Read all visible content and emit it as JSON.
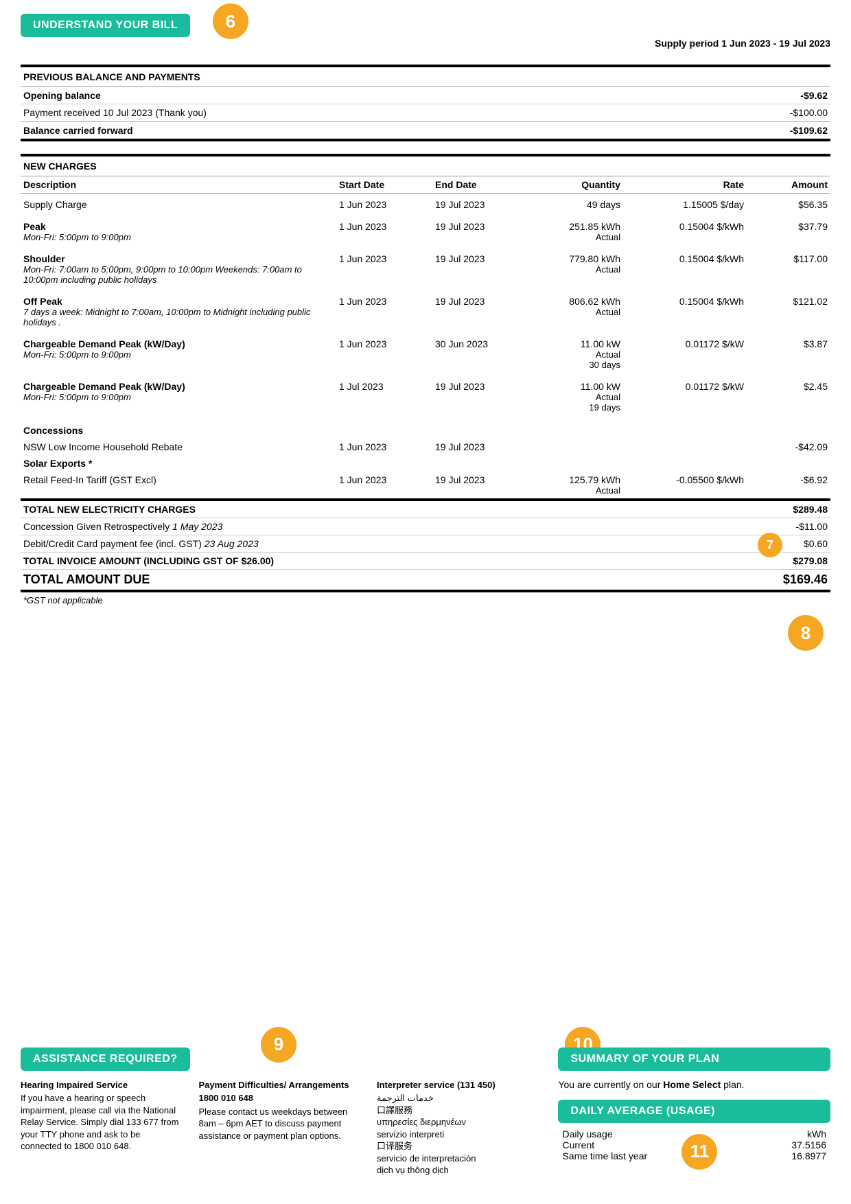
{
  "colors": {
    "accent_green": "#1abc9c",
    "accent_orange": "#f5a623"
  },
  "header": {
    "understand_label": "UNDERSTAND YOUR BILL",
    "supply_period_label": "Supply period 1 Jun 2023 - 19 Jul 2023"
  },
  "badges": {
    "b6": "6",
    "b7": "7",
    "b8": "8",
    "b9": "9",
    "b10": "10",
    "b11": "11"
  },
  "prev_balance": {
    "title": "PREVIOUS BALANCE AND PAYMENTS",
    "rows": [
      {
        "label": "Opening balance",
        "value": "-$9.62",
        "bold": true
      },
      {
        "label": "Payment received 10 Jul 2023 (Thank you)",
        "value": "-$100.00",
        "bold": false
      }
    ],
    "carried": {
      "label": "Balance carried forward",
      "value": "-$109.62"
    }
  },
  "new_charges": {
    "title": "NEW CHARGES",
    "columns": {
      "desc": "Description",
      "start": "Start Date",
      "end": "End Date",
      "qty": "Quantity",
      "rate": "Rate",
      "amt": "Amount"
    },
    "rows": [
      {
        "desc": "Supply Charge",
        "sub": "",
        "start": "1 Jun 2023",
        "end": "19 Jul 2023",
        "qty": "49 days",
        "qty2": "",
        "qty3": "",
        "rate": "1.15005 $/day",
        "amt": "$56.35",
        "bold": false
      },
      {
        "desc": "Peak",
        "sub": "Mon-Fri: 5:00pm to 9:00pm",
        "start": "1 Jun 2023",
        "end": "19 Jul 2023",
        "qty": "251.85 kWh",
        "qty2": "Actual",
        "qty3": "",
        "rate": "0.15004 $/kWh",
        "amt": "$37.79",
        "bold": true
      },
      {
        "desc": "Shoulder",
        "sub": "Mon-Fri: 7:00am to 5:00pm, 9:00pm to 10:00pm Weekends: 7:00am to 10:00pm including public holidays",
        "start": "1 Jun 2023",
        "end": "19 Jul 2023",
        "qty": "779.80 kWh",
        "qty2": "Actual",
        "qty3": "",
        "rate": "0.15004 $/kWh",
        "amt": "$117.00",
        "bold": true
      },
      {
        "desc": "Off Peak",
        "sub": "7 days a week: Midnight to 7:00am, 10:00pm to Midnight including public holidays .",
        "start": "1 Jun 2023",
        "end": "19 Jul 2023",
        "qty": "806.62 kWh",
        "qty2": "Actual",
        "qty3": "",
        "rate": "0.15004 $/kWh",
        "amt": "$121.02",
        "bold": true
      },
      {
        "desc": "Chargeable Demand Peak (kW/Day)",
        "sub": "Mon-Fri: 5:00pm to 9:00pm",
        "start": "1 Jun 2023",
        "end": "30 Jun 2023",
        "qty": "11.00 kW",
        "qty2": "Actual",
        "qty3": "30 days",
        "rate": "0.01172 $/kW",
        "amt": "$3.87",
        "bold": true
      },
      {
        "desc": "Chargeable Demand Peak (kW/Day)",
        "sub": "Mon-Fri: 5:00pm to 9:00pm",
        "start": "1 Jul 2023",
        "end": "19 Jul 2023",
        "qty": "11.00 kW",
        "qty2": "Actual",
        "qty3": "19 days",
        "rate": "0.01172 $/kW",
        "amt": "$2.45",
        "bold": true
      }
    ],
    "concessions_label": "Concessions",
    "concession_row": {
      "desc": "NSW Low Income Household Rebate",
      "start": "1 Jun 2023",
      "end": "19 Jul 2023",
      "amt": "-$42.09"
    },
    "solar_label": "Solar Exports *",
    "solar_row": {
      "desc": "Retail Feed-In Tariff (GST Excl)",
      "start": "1 Jun 2023",
      "end": "19 Jul 2023",
      "qty": "125.79 kWh",
      "qty2": "Actual",
      "rate": "-0.05500 $/kWh",
      "amt": "-$6.92"
    }
  },
  "totals": {
    "total_new": {
      "label": "TOTAL NEW ELECTRICITY CHARGES",
      "value": "$289.48"
    },
    "retro": {
      "label": "Concession Given Retrospectively",
      "date": "1 May 2023",
      "value": "-$11.00"
    },
    "fee": {
      "label": "Debit/Credit Card payment fee (incl. GST)",
      "date": "23 Aug 2023",
      "value": "$0.60"
    },
    "invoice": {
      "label": "TOTAL INVOICE AMOUNT (INCLUDING GST OF $26.00)",
      "value": "$279.08"
    },
    "due": {
      "label": "TOTAL AMOUNT DUE",
      "value": "$169.46"
    },
    "gst_note": "*GST not applicable"
  },
  "assistance": {
    "title": "ASSISTANCE REQUIRED?",
    "hearing": {
      "heading": "Hearing Impaired Service",
      "body": "If you have a hearing or speech impairment, please call via the National Relay Service. Simply dial 133 677 from your TTY phone and ask to be connected to 1800 010 648."
    },
    "payment": {
      "heading": "Payment Difficulties/ Arrangements",
      "phone": "1800 010 648",
      "body": "Please contact us weekdays between 8am – 6pm AET to discuss payment assistance or payment plan options."
    },
    "interpreter": {
      "heading": "Interpreter service (131 450)",
      "lines": [
        "خدمات الترجمة",
        "口譯服務",
        "υπηρεσίες διερμηνέων",
        "servizio interpreti",
        "口译服务",
        "servicio de interpretación",
        "dịch vụ thông dịch"
      ]
    }
  },
  "plan_summary": {
    "title": "SUMMARY OF YOUR PLAN",
    "text_before": "You are currently on our ",
    "plan_name": "Home Select",
    "text_after": " plan.",
    "usage_title": "DAILY AVERAGE (USAGE)",
    "usage": {
      "heading": "Daily usage",
      "unit": "kWh",
      "current_label": "Current",
      "current_value": "37.5156",
      "last_label": "Same time last year",
      "last_value": "16.8977"
    }
  }
}
